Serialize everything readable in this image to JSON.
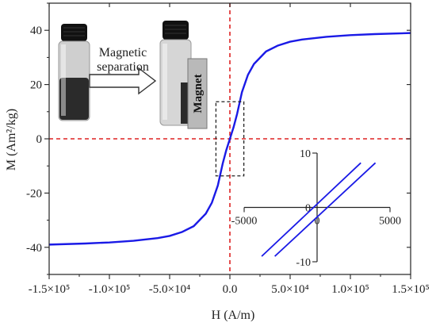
{
  "chart_data": [
    {
      "type": "line",
      "title": "",
      "xlabel": "H (A/m)",
      "ylabel": "M (Am²/kg)",
      "xlim": [
        -150000,
        150000
      ],
      "ylim": [
        -50,
        50
      ],
      "xticks": [
        -150000,
        -100000,
        -50000,
        0,
        50000,
        100000,
        150000
      ],
      "xtick_labels": [
        "-1.5×10⁵",
        "-1.0×10⁵",
        "-5.0×10⁴",
        "0.0",
        "5.0×10⁴",
        "1.0×10⁵",
        "1.5×10⁵"
      ],
      "yticks": [
        -40,
        -20,
        0,
        20,
        40
      ],
      "ytick_labels": [
        "-40",
        "-20",
        "0",
        "20",
        "40"
      ],
      "grid": false,
      "series": [
        {
          "color": "#1a1ae6",
          "x": [
            -150000,
            -120000,
            -100000,
            -80000,
            -60000,
            -50000,
            -40000,
            -30000,
            -20000,
            -15000,
            -10000,
            -6000,
            -3000,
            0,
            3000,
            6000,
            10000,
            15000,
            20000,
            30000,
            40000,
            50000,
            60000,
            80000,
            100000,
            120000,
            150000
          ],
          "y": [
            -39.0,
            -38.6,
            -38.2,
            -37.6,
            -36.6,
            -35.8,
            -34.4,
            -32.2,
            -27.6,
            -23.6,
            -17.2,
            -9.2,
            -4.2,
            0.0,
            4.2,
            9.2,
            17.2,
            23.6,
            27.6,
            32.2,
            34.4,
            35.8,
            36.6,
            37.6,
            38.2,
            38.6,
            39.0
          ]
        }
      ],
      "reference_lines": [
        {
          "orientation": "vertical",
          "value": 0,
          "color": "#dd2222",
          "style": "dashed"
        },
        {
          "orientation": "horizontal",
          "value": 0,
          "color": "#dd2222",
          "style": "dashed"
        }
      ],
      "zoom_box": {
        "x": [
          -5000,
          5000
        ],
        "y": [
          -9,
          9
        ]
      },
      "photo_annotation": {
        "arrow_label_line1": "Magnetic",
        "arrow_label_line2": "separation",
        "magnet_label": "Magnet"
      }
    },
    {
      "type": "line",
      "title": "",
      "xlabel": "",
      "ylabel": "",
      "xlim": [
        -5000,
        5000
      ],
      "ylim": [
        -10,
        10
      ],
      "xticks": [
        -5000,
        0,
        5000
      ],
      "xtick_labels": [
        "-5000",
        "0",
        "5000"
      ],
      "yticks": [
        10,
        0,
        -10
      ],
      "ytick_labels": [
        "10",
        "0",
        "-10"
      ],
      "series": [
        {
          "color": "#1a1ae6",
          "x": [
            -3800,
            3000
          ],
          "y": [
            -9.0,
            8.2
          ]
        },
        {
          "color": "#1a1ae6",
          "x": [
            -2900,
            4000
          ],
          "y": [
            -9.0,
            8.2
          ]
        }
      ]
    }
  ]
}
